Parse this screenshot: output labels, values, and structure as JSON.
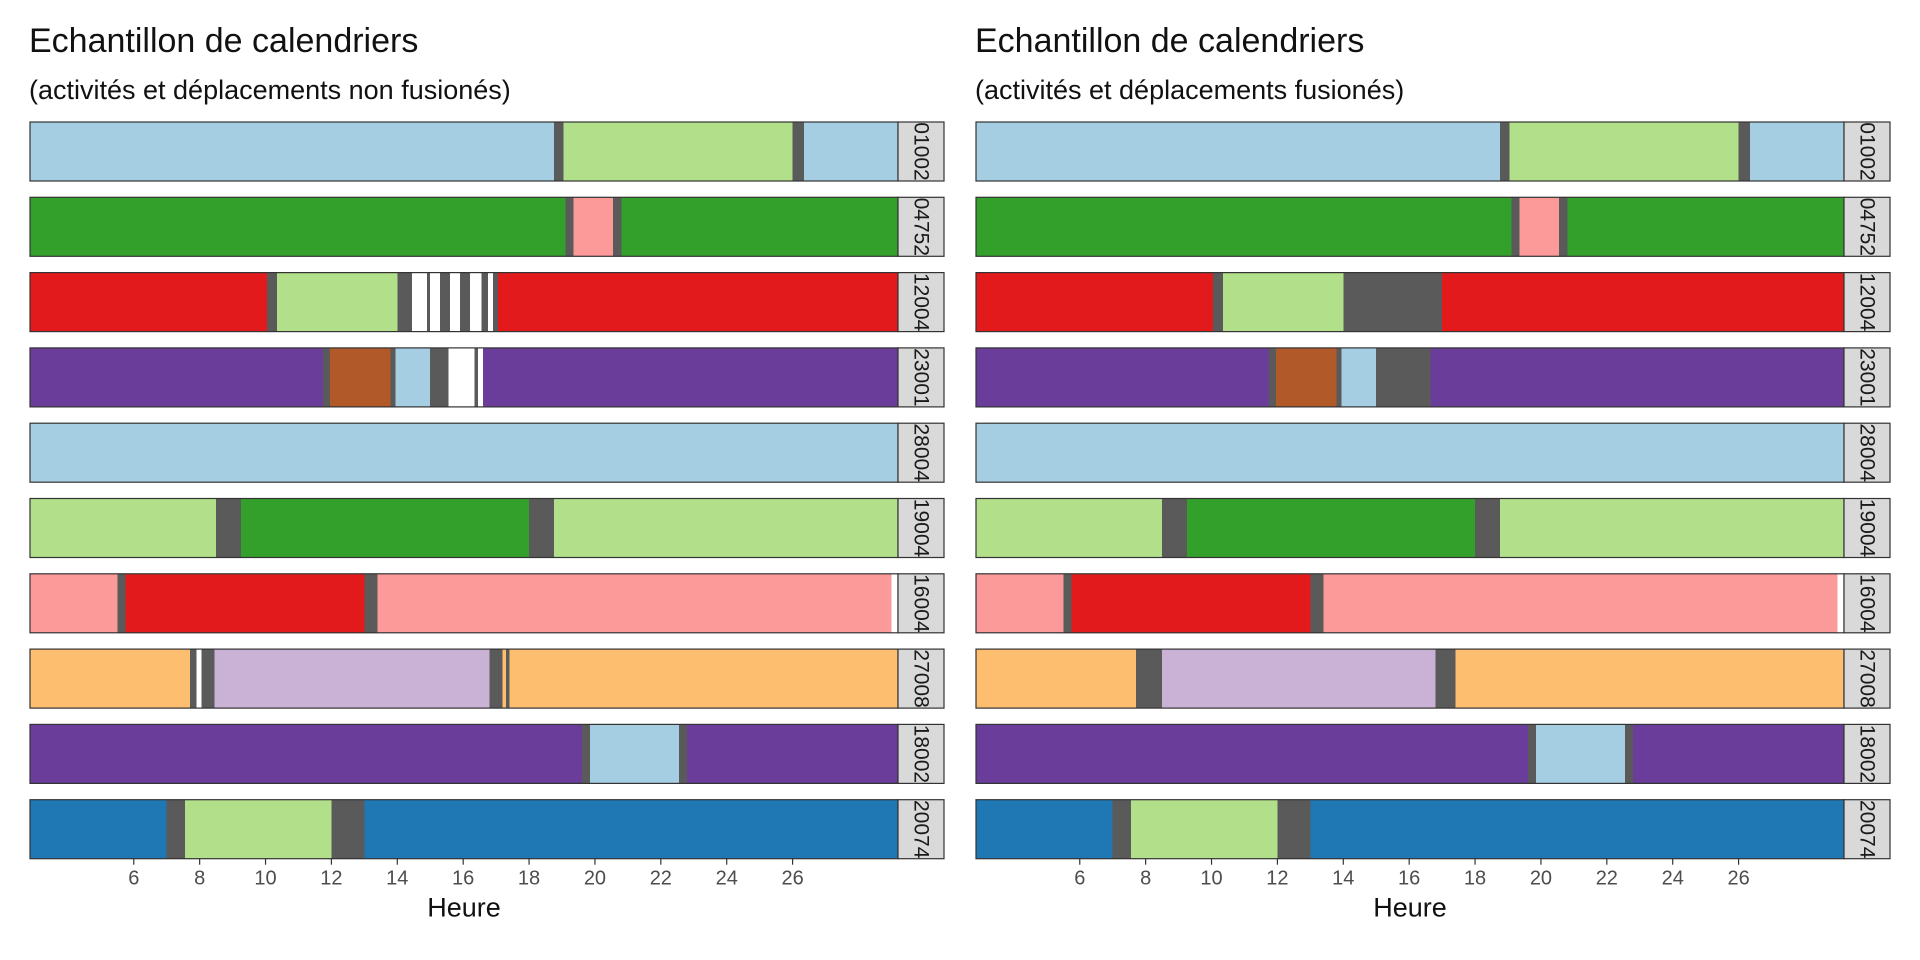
{
  "panels": [
    {
      "title": "Echantillon de calendriers",
      "subtitle": "(activités et déplacements non fusionés)",
      "xlabel": "Heure",
      "x_ticks": [
        6,
        8,
        10,
        12,
        14,
        16,
        18,
        20,
        22,
        24,
        26
      ],
      "xlim": [
        2.85,
        29.2
      ],
      "rows": [
        {
          "label": "01002",
          "segments": [
            {
              "start": 2.85,
              "end": 18.75,
              "color": "#A6CEE3"
            },
            {
              "start": 18.75,
              "end": 19.05,
              "color": "#5A5A5A"
            },
            {
              "start": 19.05,
              "end": 26.0,
              "color": "#B2DF8A"
            },
            {
              "start": 26.0,
              "end": 26.35,
              "color": "#5A5A5A"
            },
            {
              "start": 26.35,
              "end": 29.2,
              "color": "#A6CEE3"
            }
          ]
        },
        {
          "label": "04752",
          "segments": [
            {
              "start": 2.85,
              "end": 19.1,
              "color": "#33A02C"
            },
            {
              "start": 19.1,
              "end": 19.35,
              "color": "#5A5A5A"
            },
            {
              "start": 19.35,
              "end": 20.55,
              "color": "#FB9A99"
            },
            {
              "start": 20.55,
              "end": 20.8,
              "color": "#5A5A5A"
            },
            {
              "start": 20.8,
              "end": 29.2,
              "color": "#33A02C"
            }
          ]
        },
        {
          "label": "12004",
          "segments": [
            {
              "start": 2.85,
              "end": 10.05,
              "color": "#E31A1C"
            },
            {
              "start": 10.05,
              "end": 10.35,
              "color": "#5A5A5A"
            },
            {
              "start": 10.35,
              "end": 14.0,
              "color": "#B2DF8A"
            },
            {
              "start": 14.0,
              "end": 14.45,
              "color": "#5A5A5A"
            },
            {
              "start": 14.45,
              "end": 14.9,
              "color": "#FFFFFF"
            },
            {
              "start": 14.9,
              "end": 15.0,
              "color": "#5A5A5A"
            },
            {
              "start": 15.0,
              "end": 15.3,
              "color": "#FFFFFF"
            },
            {
              "start": 15.3,
              "end": 15.6,
              "color": "#5A5A5A"
            },
            {
              "start": 15.6,
              "end": 15.9,
              "color": "#FFFFFF"
            },
            {
              "start": 15.9,
              "end": 16.2,
              "color": "#5A5A5A"
            },
            {
              "start": 16.2,
              "end": 16.55,
              "color": "#FFFFFF"
            },
            {
              "start": 16.55,
              "end": 16.75,
              "color": "#5A5A5A"
            },
            {
              "start": 16.75,
              "end": 16.9,
              "color": "#FFFFFF"
            },
            {
              "start": 16.9,
              "end": 17.05,
              "color": "#5A5A5A"
            },
            {
              "start": 17.05,
              "end": 29.2,
              "color": "#E31A1C"
            }
          ]
        },
        {
          "label": "23001",
          "segments": [
            {
              "start": 2.85,
              "end": 11.75,
              "color": "#6A3D9A"
            },
            {
              "start": 11.75,
              "end": 11.95,
              "color": "#5A5A5A"
            },
            {
              "start": 11.95,
              "end": 13.8,
              "color": "#B15928"
            },
            {
              "start": 13.8,
              "end": 13.95,
              "color": "#5A5A5A"
            },
            {
              "start": 13.95,
              "end": 15.0,
              "color": "#A6CEE3"
            },
            {
              "start": 15.0,
              "end": 15.55,
              "color": "#5A5A5A"
            },
            {
              "start": 15.55,
              "end": 16.35,
              "color": "#FFFFFF"
            },
            {
              "start": 16.35,
              "end": 16.45,
              "color": "#5A5A5A"
            },
            {
              "start": 16.45,
              "end": 16.6,
              "color": "#FFFFFF"
            },
            {
              "start": 16.6,
              "end": 29.2,
              "color": "#6A3D9A"
            }
          ]
        },
        {
          "label": "28004",
          "segments": [
            {
              "start": 2.85,
              "end": 29.2,
              "color": "#A6CEE3"
            }
          ]
        },
        {
          "label": "19004",
          "segments": [
            {
              "start": 2.85,
              "end": 8.5,
              "color": "#B2DF8A"
            },
            {
              "start": 8.5,
              "end": 9.25,
              "color": "#5A5A5A"
            },
            {
              "start": 9.25,
              "end": 18.0,
              "color": "#33A02C"
            },
            {
              "start": 18.0,
              "end": 18.75,
              "color": "#5A5A5A"
            },
            {
              "start": 18.75,
              "end": 29.2,
              "color": "#B2DF8A"
            }
          ]
        },
        {
          "label": "16004",
          "segments": [
            {
              "start": 2.85,
              "end": 5.5,
              "color": "#FB9A99"
            },
            {
              "start": 5.5,
              "end": 5.75,
              "color": "#5A5A5A"
            },
            {
              "start": 5.75,
              "end": 13.0,
              "color": "#E31A1C"
            },
            {
              "start": 13.0,
              "end": 13.4,
              "color": "#5A5A5A"
            },
            {
              "start": 13.4,
              "end": 29.0,
              "color": "#FB9A99"
            },
            {
              "start": 29.0,
              "end": 29.2,
              "color": "#FFFFFF"
            }
          ]
        },
        {
          "label": "27008",
          "segments": [
            {
              "start": 2.85,
              "end": 7.7,
              "color": "#FDBF6F"
            },
            {
              "start": 7.7,
              "end": 7.9,
              "color": "#5A5A5A"
            },
            {
              "start": 7.9,
              "end": 8.05,
              "color": "#FFFFFF"
            },
            {
              "start": 8.05,
              "end": 8.45,
              "color": "#5A5A5A"
            },
            {
              "start": 8.45,
              "end": 16.8,
              "color": "#CAB2D6"
            },
            {
              "start": 16.8,
              "end": 17.2,
              "color": "#5A5A5A"
            },
            {
              "start": 17.2,
              "end": 17.3,
              "color": "#FDBF6F"
            },
            {
              "start": 17.3,
              "end": 17.4,
              "color": "#5A5A5A"
            },
            {
              "start": 17.4,
              "end": 29.2,
              "color": "#FDBF6F"
            }
          ]
        },
        {
          "label": "18002",
          "segments": [
            {
              "start": 2.85,
              "end": 19.6,
              "color": "#6A3D9A"
            },
            {
              "start": 19.6,
              "end": 19.85,
              "color": "#5A5A5A"
            },
            {
              "start": 19.85,
              "end": 22.55,
              "color": "#A6CEE3"
            },
            {
              "start": 22.55,
              "end": 22.8,
              "color": "#5A5A5A"
            },
            {
              "start": 22.8,
              "end": 29.2,
              "color": "#6A3D9A"
            }
          ]
        },
        {
          "label": "20074",
          "segments": [
            {
              "start": 2.85,
              "end": 7.0,
              "color": "#1F78B4"
            },
            {
              "start": 7.0,
              "end": 7.55,
              "color": "#5A5A5A"
            },
            {
              "start": 7.55,
              "end": 12.0,
              "color": "#B2DF8A"
            },
            {
              "start": 12.0,
              "end": 13.0,
              "color": "#5A5A5A"
            },
            {
              "start": 13.0,
              "end": 29.2,
              "color": "#1F78B4"
            }
          ]
        }
      ]
    },
    {
      "title": "Echantillon de calendriers",
      "subtitle": "(activités et déplacements fusionés)",
      "xlabel": "Heure",
      "x_ticks": [
        6,
        8,
        10,
        12,
        14,
        16,
        18,
        20,
        22,
        24,
        26
      ],
      "xlim": [
        2.85,
        29.2
      ],
      "rows": [
        {
          "label": "01002",
          "segments": [
            {
              "start": 2.85,
              "end": 18.75,
              "color": "#A6CEE3"
            },
            {
              "start": 18.75,
              "end": 19.05,
              "color": "#5A5A5A"
            },
            {
              "start": 19.05,
              "end": 26.0,
              "color": "#B2DF8A"
            },
            {
              "start": 26.0,
              "end": 26.35,
              "color": "#5A5A5A"
            },
            {
              "start": 26.35,
              "end": 29.2,
              "color": "#A6CEE3"
            }
          ]
        },
        {
          "label": "04752",
          "segments": [
            {
              "start": 2.85,
              "end": 19.1,
              "color": "#33A02C"
            },
            {
              "start": 19.1,
              "end": 19.35,
              "color": "#5A5A5A"
            },
            {
              "start": 19.35,
              "end": 20.55,
              "color": "#FB9A99"
            },
            {
              "start": 20.55,
              "end": 20.8,
              "color": "#5A5A5A"
            },
            {
              "start": 20.8,
              "end": 29.2,
              "color": "#33A02C"
            }
          ]
        },
        {
          "label": "12004",
          "segments": [
            {
              "start": 2.85,
              "end": 10.05,
              "color": "#E31A1C"
            },
            {
              "start": 10.05,
              "end": 10.35,
              "color": "#5A5A5A"
            },
            {
              "start": 10.35,
              "end": 14.0,
              "color": "#B2DF8A"
            },
            {
              "start": 14.0,
              "end": 17.0,
              "color": "#5A5A5A"
            },
            {
              "start": 17.0,
              "end": 29.2,
              "color": "#E31A1C"
            }
          ]
        },
        {
          "label": "23001",
          "segments": [
            {
              "start": 2.85,
              "end": 11.75,
              "color": "#6A3D9A"
            },
            {
              "start": 11.75,
              "end": 11.95,
              "color": "#5A5A5A"
            },
            {
              "start": 11.95,
              "end": 13.8,
              "color": "#B15928"
            },
            {
              "start": 13.8,
              "end": 13.95,
              "color": "#5A5A5A"
            },
            {
              "start": 13.95,
              "end": 15.0,
              "color": "#A6CEE3"
            },
            {
              "start": 15.0,
              "end": 16.65,
              "color": "#5A5A5A"
            },
            {
              "start": 16.65,
              "end": 29.2,
              "color": "#6A3D9A"
            }
          ]
        },
        {
          "label": "28004",
          "segments": [
            {
              "start": 2.85,
              "end": 29.2,
              "color": "#A6CEE3"
            }
          ]
        },
        {
          "label": "19004",
          "segments": [
            {
              "start": 2.85,
              "end": 8.5,
              "color": "#B2DF8A"
            },
            {
              "start": 8.5,
              "end": 9.25,
              "color": "#5A5A5A"
            },
            {
              "start": 9.25,
              "end": 18.0,
              "color": "#33A02C"
            },
            {
              "start": 18.0,
              "end": 18.75,
              "color": "#5A5A5A"
            },
            {
              "start": 18.75,
              "end": 29.2,
              "color": "#B2DF8A"
            }
          ]
        },
        {
          "label": "16004",
          "segments": [
            {
              "start": 2.85,
              "end": 5.5,
              "color": "#FB9A99"
            },
            {
              "start": 5.5,
              "end": 5.75,
              "color": "#5A5A5A"
            },
            {
              "start": 5.75,
              "end": 13.0,
              "color": "#E31A1C"
            },
            {
              "start": 13.0,
              "end": 13.4,
              "color": "#5A5A5A"
            },
            {
              "start": 13.4,
              "end": 29.0,
              "color": "#FB9A99"
            },
            {
              "start": 29.0,
              "end": 29.2,
              "color": "#FFFFFF"
            }
          ]
        },
        {
          "label": "27008",
          "segments": [
            {
              "start": 2.85,
              "end": 7.7,
              "color": "#FDBF6F"
            },
            {
              "start": 7.7,
              "end": 8.5,
              "color": "#5A5A5A"
            },
            {
              "start": 8.5,
              "end": 16.8,
              "color": "#CAB2D6"
            },
            {
              "start": 16.8,
              "end": 17.4,
              "color": "#5A5A5A"
            },
            {
              "start": 17.4,
              "end": 29.2,
              "color": "#FDBF6F"
            }
          ]
        },
        {
          "label": "18002",
          "segments": [
            {
              "start": 2.85,
              "end": 19.6,
              "color": "#6A3D9A"
            },
            {
              "start": 19.6,
              "end": 19.85,
              "color": "#5A5A5A"
            },
            {
              "start": 19.85,
              "end": 22.55,
              "color": "#A6CEE3"
            },
            {
              "start": 22.55,
              "end": 22.8,
              "color": "#5A5A5A"
            },
            {
              "start": 22.8,
              "end": 29.2,
              "color": "#6A3D9A"
            }
          ]
        },
        {
          "label": "20074",
          "segments": [
            {
              "start": 2.85,
              "end": 7.0,
              "color": "#1F78B4"
            },
            {
              "start": 7.0,
              "end": 7.55,
              "color": "#5A5A5A"
            },
            {
              "start": 7.55,
              "end": 12.0,
              "color": "#B2DF8A"
            },
            {
              "start": 12.0,
              "end": 13.0,
              "color": "#5A5A5A"
            },
            {
              "start": 13.0,
              "end": 29.2,
              "color": "#1F78B4"
            }
          ]
        }
      ]
    }
  ],
  "chart_data": [
    {
      "type": "bar",
      "title": "Echantillon de calendriers",
      "subtitle": "(activités et déplacements non fusionés)",
      "xlabel": "Heure",
      "ylabel": "",
      "facets": [
        "01002",
        "04752",
        "12004",
        "23001",
        "28004",
        "19004",
        "16004",
        "27008",
        "18002",
        "20074"
      ],
      "x_ticks": [
        6,
        8,
        10,
        12,
        14,
        16,
        18,
        20,
        22,
        24,
        26
      ]
    },
    {
      "type": "bar",
      "title": "Echantillon de calendriers",
      "subtitle": "(activités et déplacements fusionés)",
      "xlabel": "Heure",
      "ylabel": "",
      "facets": [
        "01002",
        "04752",
        "12004",
        "23001",
        "28004",
        "19004",
        "16004",
        "27008",
        "18002",
        "20074"
      ],
      "x_ticks": [
        6,
        8,
        10,
        12,
        14,
        16,
        18,
        20,
        22,
        24,
        26
      ]
    }
  ]
}
